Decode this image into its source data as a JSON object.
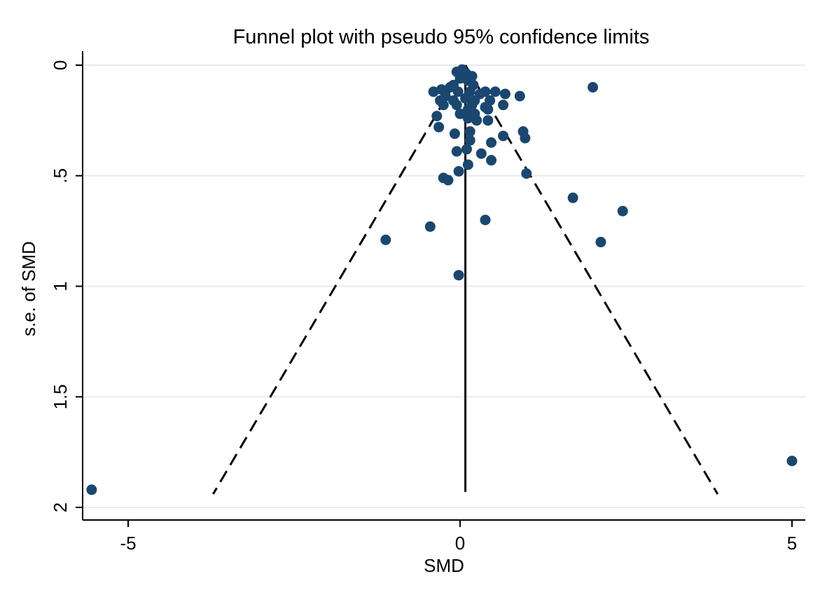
{
  "chart_data": {
    "type": "scatter",
    "title": "Funnel plot with pseudo 95% confidence limits",
    "xlabel": "SMD",
    "ylabel": "s.e. of SMD",
    "xlim": [
      -5.7,
      5.2
    ],
    "ylim": [
      0,
      2.05
    ],
    "y_inverted": true,
    "x_ticks": [
      {
        "value": -5,
        "label": "-5"
      },
      {
        "value": 0,
        "label": "0"
      },
      {
        "value": 5,
        "label": "5"
      }
    ],
    "y_ticks": [
      {
        "value": 0,
        "label": "0"
      },
      {
        "value": 0.5,
        "label": ".5"
      },
      {
        "value": 1,
        "label": "1"
      },
      {
        "value": 1.5,
        "label": "1.5"
      },
      {
        "value": 2,
        "label": "2"
      }
    ],
    "grid": "horizontal",
    "pooled_effect": 0.08,
    "ci_lines": {
      "left": [
        [
          0.08,
          0
        ],
        [
          -3.72,
          1.94
        ]
      ],
      "right": [
        [
          0.08,
          0
        ],
        [
          3.88,
          1.94
        ]
      ]
    },
    "effect_line": [
      [
        0.08,
        0
      ],
      [
        0.08,
        1.93
      ]
    ],
    "colors": {
      "points": "#1a476f",
      "grid": "#e6ecef"
    },
    "points": [
      {
        "x": -0.05,
        "y": 0.03
      },
      {
        "x": 0.03,
        "y": 0.02
      },
      {
        "x": 0.1,
        "y": 0.04
      },
      {
        "x": 0.18,
        "y": 0.05
      },
      {
        "x": 0.0,
        "y": 0.06
      },
      {
        "x": 0.12,
        "y": 0.07
      },
      {
        "x": -0.1,
        "y": 0.09
      },
      {
        "x": 0.2,
        "y": 0.09
      },
      {
        "x": -0.4,
        "y": 0.12
      },
      {
        "x": -0.28,
        "y": 0.11
      },
      {
        "x": -0.15,
        "y": 0.1
      },
      {
        "x": -0.03,
        "y": 0.12
      },
      {
        "x": 0.15,
        "y": 0.12
      },
      {
        "x": 0.38,
        "y": 0.12
      },
      {
        "x": 0.53,
        "y": 0.12
      },
      {
        "x": 2.0,
        "y": 0.1
      },
      {
        "x": -0.22,
        "y": 0.14
      },
      {
        "x": 0.3,
        "y": 0.13
      },
      {
        "x": 0.68,
        "y": 0.13
      },
      {
        "x": 0.9,
        "y": 0.14
      },
      {
        "x": -0.3,
        "y": 0.16
      },
      {
        "x": -0.1,
        "y": 0.16
      },
      {
        "x": 0.08,
        "y": 0.15
      },
      {
        "x": 0.22,
        "y": 0.16
      },
      {
        "x": 0.45,
        "y": 0.16
      },
      {
        "x": -0.25,
        "y": 0.18
      },
      {
        "x": -0.05,
        "y": 0.18
      },
      {
        "x": 0.18,
        "y": 0.18
      },
      {
        "x": 0.65,
        "y": 0.18
      },
      {
        "x": 0.38,
        "y": 0.19
      },
      {
        "x": 0.12,
        "y": 0.2
      },
      {
        "x": 0.42,
        "y": 0.2
      },
      {
        "x": 0.0,
        "y": 0.22
      },
      {
        "x": 0.22,
        "y": 0.22
      },
      {
        "x": -0.35,
        "y": 0.23
      },
      {
        "x": 0.12,
        "y": 0.24
      },
      {
        "x": 0.25,
        "y": 0.25
      },
      {
        "x": 0.42,
        "y": 0.25
      },
      {
        "x": -0.32,
        "y": 0.28
      },
      {
        "x": 0.15,
        "y": 0.3
      },
      {
        "x": 0.95,
        "y": 0.3
      },
      {
        "x": -0.08,
        "y": 0.31
      },
      {
        "x": 0.65,
        "y": 0.32
      },
      {
        "x": 0.98,
        "y": 0.33
      },
      {
        "x": 0.15,
        "y": 0.34
      },
      {
        "x": 0.47,
        "y": 0.35
      },
      {
        "x": 0.1,
        "y": 0.38
      },
      {
        "x": 0.32,
        "y": 0.4
      },
      {
        "x": -0.05,
        "y": 0.39
      },
      {
        "x": 0.47,
        "y": 0.43
      },
      {
        "x": 0.12,
        "y": 0.45
      },
      {
        "x": -0.02,
        "y": 0.48
      },
      {
        "x": 1.0,
        "y": 0.49
      },
      {
        "x": -0.25,
        "y": 0.51
      },
      {
        "x": -0.18,
        "y": 0.52
      },
      {
        "x": 1.7,
        "y": 0.6
      },
      {
        "x": 2.45,
        "y": 0.66
      },
      {
        "x": 0.38,
        "y": 0.7
      },
      {
        "x": -0.45,
        "y": 0.73
      },
      {
        "x": -1.12,
        "y": 0.79
      },
      {
        "x": 2.12,
        "y": 0.8
      },
      {
        "x": -0.02,
        "y": 0.95
      },
      {
        "x": 5.0,
        "y": 1.79
      },
      {
        "x": -5.55,
        "y": 1.92
      }
    ]
  }
}
